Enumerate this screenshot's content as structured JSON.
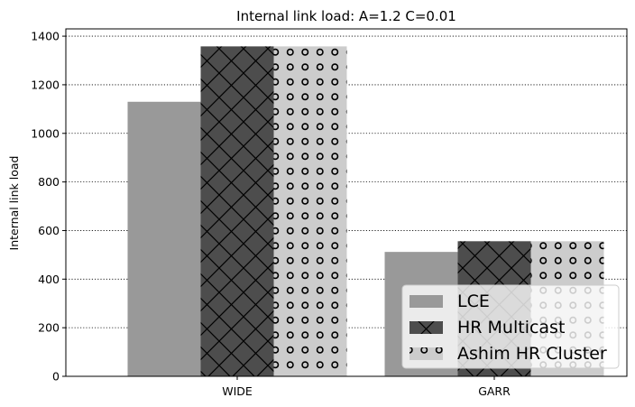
{
  "chart_data": {
    "type": "bar",
    "title": "Internal link load: A=1.2 C=0.01",
    "xlabel": "",
    "ylabel": "Internal link load",
    "categories": [
      "WIDE",
      "GARR"
    ],
    "series": [
      {
        "name": "LCE",
        "values": [
          1130,
          512
        ],
        "color": "#999999",
        "pattern": "solid"
      },
      {
        "name": "HR Multicast",
        "values": [
          1358,
          556
        ],
        "color": "#4d4d4d",
        "pattern": "crosshatch"
      },
      {
        "name": "Ashim HR Cluster",
        "values": [
          1358,
          556
        ],
        "color": "#cccccc",
        "pattern": "circles"
      }
    ],
    "ylim": [
      0,
      1430
    ],
    "yticks": [
      0,
      200,
      400,
      600,
      800,
      1000,
      1200,
      1400
    ],
    "grid": "y-dotted",
    "legend_position": "lower-right"
  }
}
